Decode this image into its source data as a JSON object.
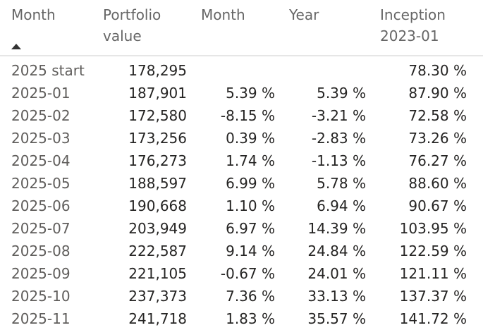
{
  "table": {
    "headers": {
      "month": "Month",
      "portfolio_value": "Portfolio\nvalue",
      "month_return": "Month",
      "year_return": "Year",
      "inception": "Inception\n2023-01"
    },
    "sort": {
      "column": "month",
      "direction": "ascending",
      "icon": "sort-ascending-icon"
    },
    "rows": [
      {
        "month": "2025 start",
        "portfolio_value": "178,295",
        "month_return": "",
        "year_return": "",
        "inception": "78.30 %"
      },
      {
        "month": "2025-01",
        "portfolio_value": "187,901",
        "month_return": "5.39 %",
        "year_return": "5.39 %",
        "inception": "87.90 %"
      },
      {
        "month": "2025-02",
        "portfolio_value": "172,580",
        "month_return": "-8.15 %",
        "year_return": "-3.21 %",
        "inception": "72.58 %"
      },
      {
        "month": "2025-03",
        "portfolio_value": "173,256",
        "month_return": "0.39 %",
        "year_return": "-2.83 %",
        "inception": "73.26 %"
      },
      {
        "month": "2025-04",
        "portfolio_value": "176,273",
        "month_return": "1.74 %",
        "year_return": "-1.13 %",
        "inception": "76.27 %"
      },
      {
        "month": "2025-05",
        "portfolio_value": "188,597",
        "month_return": "6.99 %",
        "year_return": "5.78 %",
        "inception": "88.60 %"
      },
      {
        "month": "2025-06",
        "portfolio_value": "190,668",
        "month_return": "1.10 %",
        "year_return": "6.94 %",
        "inception": "90.67 %"
      },
      {
        "month": "2025-07",
        "portfolio_value": "203,949",
        "month_return": "6.97 %",
        "year_return": "14.39 %",
        "inception": "103.95 %"
      },
      {
        "month": "2025-08",
        "portfolio_value": "222,587",
        "month_return": "9.14 %",
        "year_return": "24.84 %",
        "inception": "122.59 %"
      },
      {
        "month": "2025-09",
        "portfolio_value": "221,105",
        "month_return": "-0.67 %",
        "year_return": "24.01 %",
        "inception": "121.11 %"
      },
      {
        "month": "2025-10",
        "portfolio_value": "237,373",
        "month_return": "7.36 %",
        "year_return": "33.13 %",
        "inception": "137.37 %"
      },
      {
        "month": "2025-11",
        "portfolio_value": "241,718",
        "month_return": "1.83 %",
        "year_return": "35.57 %",
        "inception": "141.72 %"
      }
    ]
  }
}
